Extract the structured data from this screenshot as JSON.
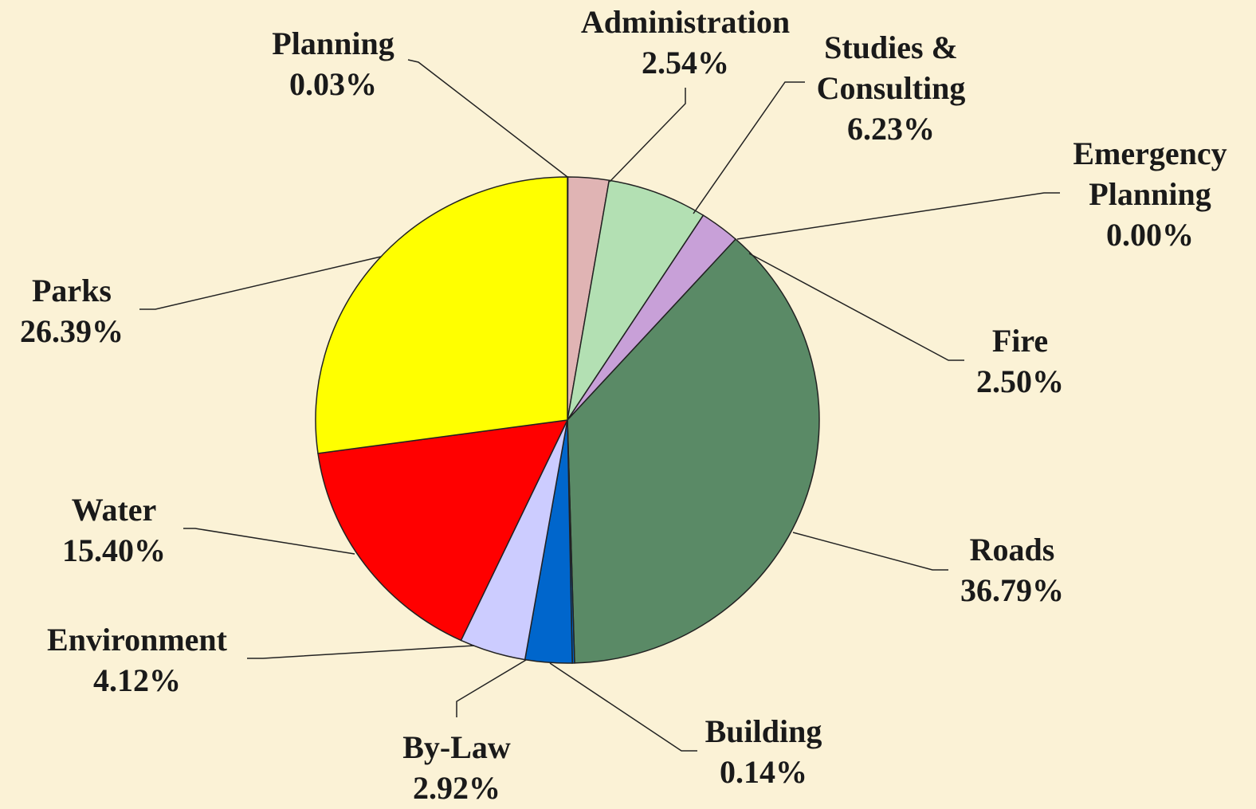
{
  "chart_data": {
    "type": "pie",
    "categories": [
      "Planning",
      "Administration",
      "Studies & Consulting",
      "Emergency Planning",
      "Fire",
      "Roads",
      "Building",
      "By-Law",
      "Environment",
      "Water",
      "Parks"
    ],
    "values": [
      0.03,
      2.54,
      6.23,
      0.0,
      2.5,
      36.79,
      0.14,
      2.92,
      4.12,
      15.4,
      26.39
    ],
    "value_labels": [
      "0.03%",
      "2.54%",
      "6.23%",
      "0.00%",
      "2.50%",
      "36.79%",
      "0.14%",
      "2.92%",
      "4.12%",
      "15.40%",
      "26.39%"
    ],
    "colors": [
      "#e0b4b4",
      "#e0b4b4",
      "#b3e0b3",
      "#c8a0d8",
      "#c8a0d8",
      "#5a8a66",
      "#0066cc",
      "#0066cc",
      "#ccccff",
      "#ff0000",
      "#ffff00"
    ]
  }
}
